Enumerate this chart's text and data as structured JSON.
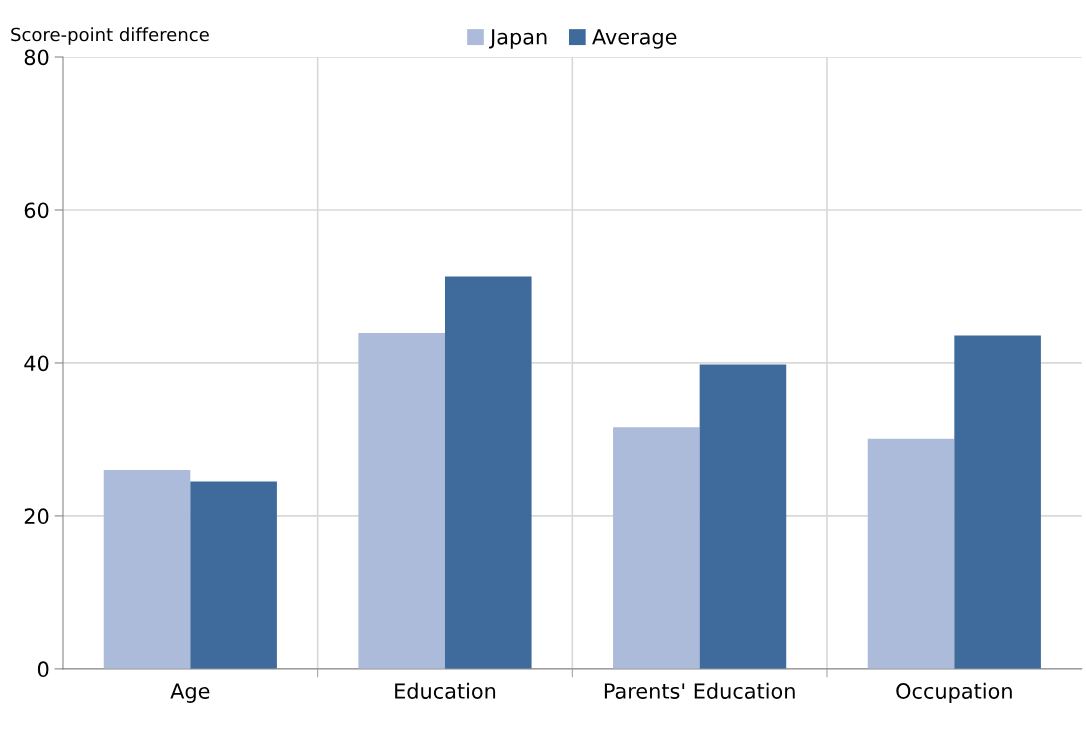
{
  "chart_data": {
    "type": "bar",
    "ylabel": "Score-point difference",
    "categories": [
      "Age",
      "Education",
      "Parents' Education",
      "Occupation"
    ],
    "series": [
      {
        "name": "Japan",
        "color": "#abbbd9",
        "values": [
          26.0,
          43.9,
          31.6,
          30.1
        ]
      },
      {
        "name": "Average",
        "color": "#3f6b9c",
        "values": [
          24.5,
          51.3,
          39.8,
          43.6
        ]
      }
    ],
    "ylim": [
      0,
      80
    ],
    "yticks": [
      0,
      20,
      40,
      60,
      80
    ],
    "grid": true,
    "legend": "top"
  }
}
